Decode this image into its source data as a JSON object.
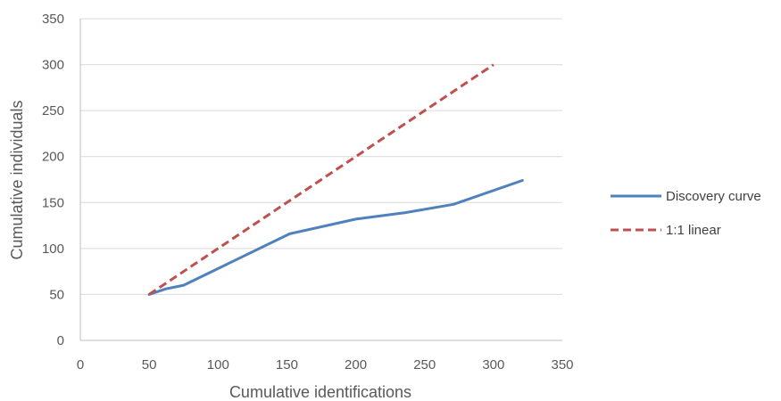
{
  "chart_data": {
    "type": "line",
    "xlabel": "Cumulative identifications",
    "ylabel": "Cumulative individuals",
    "xlim": [
      0,
      350
    ],
    "ylim": [
      0,
      350
    ],
    "xticks": [
      0,
      50,
      100,
      150,
      200,
      250,
      300,
      350
    ],
    "yticks": [
      0,
      50,
      100,
      150,
      200,
      250,
      300,
      350
    ],
    "grid": "horizontal",
    "legend_position": "right",
    "series": [
      {
        "name": "Discovery curve",
        "color": "#4f81bd",
        "style": "solid",
        "x": [
          50,
          62,
          75,
          152,
          200,
          236,
          271,
          321
        ],
        "y": [
          50,
          56,
          60,
          116,
          132,
          139,
          148,
          174
        ]
      },
      {
        "name": "1:1 linear",
        "color": "#c0504d",
        "style": "dashed",
        "x": [
          50,
          300
        ],
        "y": [
          50,
          300
        ]
      }
    ]
  }
}
